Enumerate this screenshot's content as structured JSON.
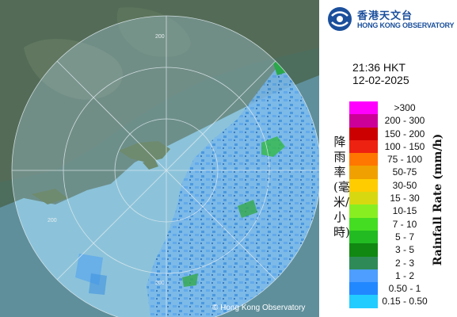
{
  "branding": {
    "logo_cn": "香港天文台",
    "logo_en": "HONG KONG OBSERVATORY",
    "copyright": "© Hong Kong Observatory"
  },
  "timestamp": {
    "time": "21:36 HKT",
    "date": "12-02-2025"
  },
  "legend": {
    "title_cn": "降雨率(毫米/小時)",
    "title_en": "Rainfall Rate (mm/h)",
    "items": [
      {
        "label": ">300",
        "color": "#ff00ff"
      },
      {
        "label": "200 - 300",
        "color": "#cc0099"
      },
      {
        "label": "150 - 200",
        "color": "#cc0000"
      },
      {
        "label": "100 - 150",
        "color": "#ee2211"
      },
      {
        "label": "75 - 100",
        "color": "#ff7700"
      },
      {
        "label": "50-75",
        "color": "#f0a000"
      },
      {
        "label": "30-50",
        "color": "#ffcc00"
      },
      {
        "label": "15 - 30",
        "color": "#d8d810"
      },
      {
        "label": "10-15",
        "color": "#88ee22"
      },
      {
        "label": "7 - 10",
        "color": "#44dd22"
      },
      {
        "label": "5 - 7",
        "color": "#22bb22"
      },
      {
        "label": "3 - 5",
        "color": "#118811"
      },
      {
        "label": "2 - 3",
        "color": "#2e8b57"
      },
      {
        "label": "1 - 2",
        "color": "#4d9eff"
      },
      {
        "label": "0.50 - 1",
        "color": "#2288ff"
      },
      {
        "label": "0.15 - 0.50",
        "color": "#22ccff"
      }
    ]
  },
  "map": {
    "range_labels": [
      "200",
      "200",
      "200"
    ]
  }
}
